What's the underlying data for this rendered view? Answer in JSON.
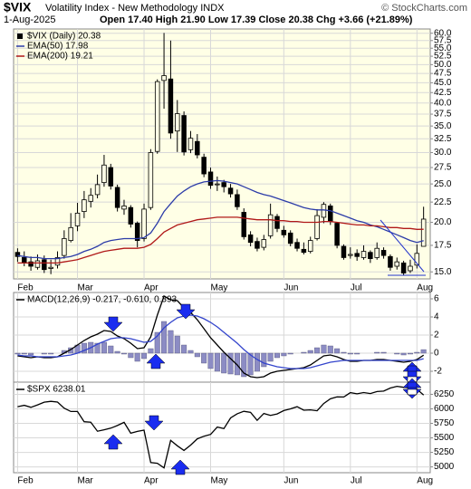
{
  "header": {
    "title": "$VIX",
    "subtitle": "Volatility Index - New Methodology INDX",
    "source": "© StockCharts.com",
    "date": "1-Aug-2025",
    "quote": "Open 17.40 High 21.90 Low 17.39 Close 20.38 Chg +3.66 (+21.89%)"
  },
  "chart_data": [
    {
      "type": "candlestick",
      "log": true,
      "grid": true,
      "background": "#ffffe6",
      "xlim": [
        -0.6,
        62
      ],
      "xticks": [
        {
          "value": 0,
          "label": "Feb"
        },
        {
          "value": 9,
          "label": "Mar"
        },
        {
          "value": 19,
          "label": "Apr"
        },
        {
          "value": 29,
          "label": "May"
        },
        {
          "value": 40,
          "label": "Jun"
        },
        {
          "value": 50,
          "label": "Jul"
        },
        {
          "value": 60,
          "label": "Aug"
        }
      ],
      "ylim": [
        14.4,
        61.5
      ],
      "yticks": [
        {
          "value": 15,
          "label": "15.0"
        },
        17.5,
        {
          "value": 20,
          "label": "20.0"
        },
        22.5,
        {
          "value": 25,
          "label": "25.0"
        },
        27.5,
        {
          "value": 30,
          "label": "30.0"
        },
        32.5,
        {
          "value": 35,
          "label": "35.0"
        },
        37.5,
        {
          "value": 40,
          "label": "40.0"
        },
        42.5,
        {
          "value": 45,
          "label": "45.0"
        },
        47.5,
        {
          "value": 50,
          "label": "50.0"
        },
        52.5,
        {
          "value": 55,
          "label": "55.0"
        },
        57.5,
        {
          "value": 60,
          "label": "60.0"
        }
      ],
      "series": [
        {
          "name": "$VIX (Daily) 20.38",
          "color": "#000000",
          "open": [
            16.8,
            16.3,
            15.9,
            15.4,
            16.1,
            15.3,
            15.6,
            16.5,
            18.0,
            19.6,
            21.3,
            22.6,
            23.5,
            25.2,
            27.5,
            24.5,
            21.6,
            21.8,
            19.9,
            18.2,
            21.8,
            30.2,
            45.6,
            46.0,
            34.0,
            37.2,
            30.5,
            32.0,
            29.2,
            26.8,
            24.9,
            25.2,
            24.4,
            23.5,
            21.2,
            18.6,
            17.9,
            17.3,
            18.5,
            20.7,
            19.1,
            18.8,
            17.8,
            17.1,
            16.9,
            18.2,
            20.6,
            22.0,
            19.9,
            17.4,
            16.5,
            16.7,
            16.3,
            16.8,
            16.3,
            17.0,
            16.4,
            15.5,
            15.8,
            15.1,
            15.6,
            17.4
          ],
          "high": [
            17.2,
            16.9,
            16.4,
            16.6,
            16.5,
            16.1,
            16.9,
            19.1,
            21.1,
            22.4,
            24.0,
            24.4,
            26.4,
            29.6,
            28.1,
            24.9,
            22.8,
            22.1,
            20.1,
            22.3,
            30.6,
            45.9,
            60.1,
            57.5,
            40.7,
            38.1,
            34.0,
            33.4,
            29.8,
            27.5,
            26.1,
            25.6,
            25.0,
            24.2,
            21.7,
            19.0,
            18.3,
            18.6,
            22.3,
            21.0,
            19.6,
            19.1,
            18.2,
            17.8,
            18.4,
            21.6,
            22.5,
            22.3,
            20.0,
            17.6,
            17.3,
            17.1,
            17.5,
            17.0,
            17.8,
            17.3,
            16.6,
            16.3,
            16.0,
            16.1,
            17.6,
            21.9
          ],
          "low": [
            15.9,
            15.5,
            15.1,
            15.2,
            14.9,
            14.8,
            15.3,
            16.2,
            17.8,
            19.0,
            20.5,
            21.8,
            23.0,
            24.6,
            24.2,
            21.3,
            20.9,
            19.4,
            17.3,
            17.9,
            21.5,
            29.8,
            38.7,
            32.5,
            30.1,
            29.5,
            29.9,
            29.0,
            26.0,
            24.3,
            24.0,
            23.8,
            23.1,
            21.5,
            18.1,
            17.4,
            16.9,
            17.0,
            18.2,
            18.9,
            18.3,
            17.4,
            16.9,
            16.6,
            16.7,
            18.0,
            19.9,
            19.7,
            17.2,
            16.1,
            16.2,
            16.0,
            16.1,
            15.8,
            16.1,
            16.2,
            15.1,
            15.2,
            14.7,
            14.9,
            15.3,
            17.39
          ],
          "close": [
            16.4,
            15.8,
            15.5,
            16.0,
            15.2,
            15.4,
            16.3,
            18.2,
            19.4,
            21.1,
            22.8,
            23.4,
            24.9,
            27.9,
            24.7,
            21.8,
            22.0,
            19.8,
            18.0,
            21.6,
            30.0,
            45.3,
            46.9,
            33.6,
            37.6,
            30.1,
            32.6,
            29.6,
            26.5,
            24.8,
            25.0,
            24.6,
            23.6,
            21.9,
            18.4,
            17.8,
            17.2,
            18.1,
            20.9,
            19.3,
            18.6,
            17.7,
            17.2,
            16.8,
            18.0,
            20.8,
            22.2,
            20.1,
            17.5,
            16.3,
            16.6,
            16.4,
            16.9,
            16.2,
            17.2,
            16.5,
            15.4,
            15.9,
            14.9,
            15.5,
            16.7,
            20.38
          ]
        },
        {
          "name": "EMA(50) 17.98",
          "color": "#2b3ba8",
          "values": [
            16.5,
            16.4,
            16.3,
            16.3,
            16.2,
            16.2,
            16.2,
            16.3,
            16.4,
            16.6,
            16.9,
            17.1,
            17.4,
            17.8,
            18.0,
            18.1,
            18.2,
            18.2,
            18.2,
            18.3,
            18.8,
            19.9,
            21.3,
            22.3,
            23.3,
            24.0,
            24.6,
            25.0,
            25.3,
            25.4,
            25.5,
            25.4,
            25.2,
            25.0,
            24.6,
            24.2,
            23.8,
            23.5,
            23.3,
            23.0,
            22.7,
            22.4,
            22.1,
            21.8,
            21.6,
            21.5,
            21.5,
            21.4,
            21.1,
            20.8,
            20.5,
            20.2,
            20.0,
            19.7,
            19.5,
            19.2,
            18.9,
            18.6,
            18.3,
            18.0,
            17.8,
            17.98
          ]
        },
        {
          "name": "EMA(200) 19.21",
          "color": "#b01818",
          "values": [
            15.8,
            15.8,
            15.8,
            15.8,
            15.8,
            15.8,
            15.8,
            15.9,
            16.0,
            16.1,
            16.3,
            16.5,
            16.7,
            16.9,
            17.0,
            17.1,
            17.2,
            17.2,
            17.2,
            17.3,
            17.6,
            18.2,
            18.9,
            19.3,
            19.7,
            19.9,
            20.1,
            20.3,
            20.4,
            20.5,
            20.6,
            20.6,
            20.6,
            20.6,
            20.5,
            20.4,
            20.3,
            20.3,
            20.3,
            20.2,
            20.2,
            20.1,
            20.1,
            20.0,
            20.0,
            20.0,
            20.1,
            20.1,
            20.0,
            19.9,
            19.8,
            19.7,
            19.7,
            19.6,
            19.6,
            19.5,
            19.4,
            19.4,
            19.3,
            19.3,
            19.2,
            19.21
          ]
        }
      ]
    },
    {
      "type": "macd",
      "grid": true,
      "background": "#ffffff",
      "xlim": [
        -0.6,
        62
      ],
      "ylim": [
        -3.2,
        6.7
      ],
      "yticks": [
        -2,
        0,
        2,
        4,
        6
      ],
      "series": [
        {
          "name": "MACD(12,26,9) -0.217, -0.610, 0.393",
          "color": "#000000",
          "values": [
            -0.3,
            -0.4,
            -0.5,
            -0.4,
            -0.5,
            -0.5,
            -0.4,
            0.0,
            0.4,
            0.9,
            1.4,
            1.8,
            2.1,
            2.5,
            2.4,
            1.9,
            1.6,
            1.1,
            0.5,
            0.6,
            1.8,
            4.2,
            6.3,
            5.9,
            5.8,
            5.0,
            4.5,
            3.7,
            2.7,
            1.7,
            0.9,
            0.1,
            -0.6,
            -1.3,
            -2.2,
            -2.6,
            -2.7,
            -2.6,
            -2.2,
            -2.0,
            -1.9,
            -1.8,
            -1.7,
            -1.6,
            -1.3,
            -0.8,
            -0.3,
            -0.2,
            -0.4,
            -0.7,
            -0.9,
            -0.9,
            -0.8,
            -0.8,
            -0.7,
            -0.7,
            -0.8,
            -0.9,
            -1.0,
            -0.9,
            -0.7,
            -0.217
          ]
        },
        {
          "color": "#3344cc",
          "values": [
            -0.2,
            -0.3,
            -0.3,
            -0.4,
            -0.4,
            -0.4,
            -0.4,
            -0.3,
            -0.2,
            0.0,
            0.3,
            0.6,
            1.0,
            1.3,
            1.6,
            1.7,
            1.7,
            1.6,
            1.4,
            1.2,
            1.3,
            1.9,
            2.8,
            3.4,
            3.9,
            4.1,
            4.2,
            4.1,
            3.8,
            3.4,
            2.9,
            2.3,
            1.7,
            1.1,
            0.4,
            -0.2,
            -0.7,
            -1.1,
            -1.3,
            -1.5,
            -1.6,
            -1.7,
            -1.7,
            -1.7,
            -1.6,
            -1.4,
            -1.2,
            -1.0,
            -0.9,
            -0.8,
            -0.8,
            -0.8,
            -0.8,
            -0.8,
            -0.8,
            -0.8,
            -0.8,
            -0.8,
            -0.8,
            -0.8,
            -0.8,
            -0.61
          ]
        },
        {
          "color": "#8c8cc4",
          "histogram": true,
          "values": [
            -0.1,
            -0.1,
            -0.2,
            0.0,
            -0.1,
            -0.1,
            0.0,
            0.3,
            0.6,
            0.9,
            1.1,
            1.2,
            1.1,
            1.2,
            0.8,
            0.2,
            -0.1,
            -0.5,
            -0.9,
            -0.6,
            0.5,
            2.3,
            3.5,
            2.5,
            1.9,
            0.9,
            0.3,
            -0.4,
            -1.1,
            -1.7,
            -2.0,
            -2.2,
            -2.3,
            -2.4,
            -2.6,
            -2.4,
            -2.0,
            -1.5,
            -0.9,
            -0.5,
            -0.3,
            -0.1,
            0.0,
            0.1,
            0.3,
            0.6,
            0.9,
            0.8,
            0.5,
            0.1,
            -0.1,
            -0.1,
            0.0,
            0.0,
            0.1,
            0.1,
            0.0,
            -0.1,
            -0.2,
            -0.1,
            0.1,
            0.393
          ]
        }
      ]
    },
    {
      "type": "line",
      "grid": true,
      "background": "#ffffff",
      "xlim": [
        -0.6,
        62
      ],
      "xticks": [
        {
          "value": 0,
          "label": "Feb"
        },
        {
          "value": 9,
          "label": "Mar"
        },
        {
          "value": 19,
          "label": "Apr"
        },
        {
          "value": 29,
          "label": "May"
        },
        {
          "value": 40,
          "label": "Jun"
        },
        {
          "value": 50,
          "label": "Jul"
        },
        {
          "value": 60,
          "label": "Aug"
        }
      ],
      "ylim": [
        4900,
        6460
      ],
      "yticks": [
        5000,
        5250,
        5500,
        5750,
        6000,
        6250
      ],
      "series": [
        {
          "name": "$SPX 6238.01",
          "color": "#000000",
          "values": [
            6037,
            6061,
            6026,
            6068,
            6115,
            6129,
            6117,
            6013,
            5955,
            5955,
            5778,
            5770,
            5614,
            5639,
            5667,
            5712,
            5768,
            5580,
            5611,
            5633,
            5074,
            5062,
            4982,
            5457,
            5363,
            5283,
            5376,
            5484,
            5528,
            5560,
            5687,
            5660,
            5844,
            5916,
            5958,
            5940,
            5802,
            5921,
            5888,
            5912,
            5970,
            6000,
            6038,
            5977,
            5982,
            5967,
            6092,
            6173,
            6205,
            6204,
            6279,
            6259,
            6280,
            6263,
            6297,
            6305,
            6358,
            6389,
            6371,
            6362,
            6339,
            6238.01
          ]
        }
      ]
    }
  ]
}
